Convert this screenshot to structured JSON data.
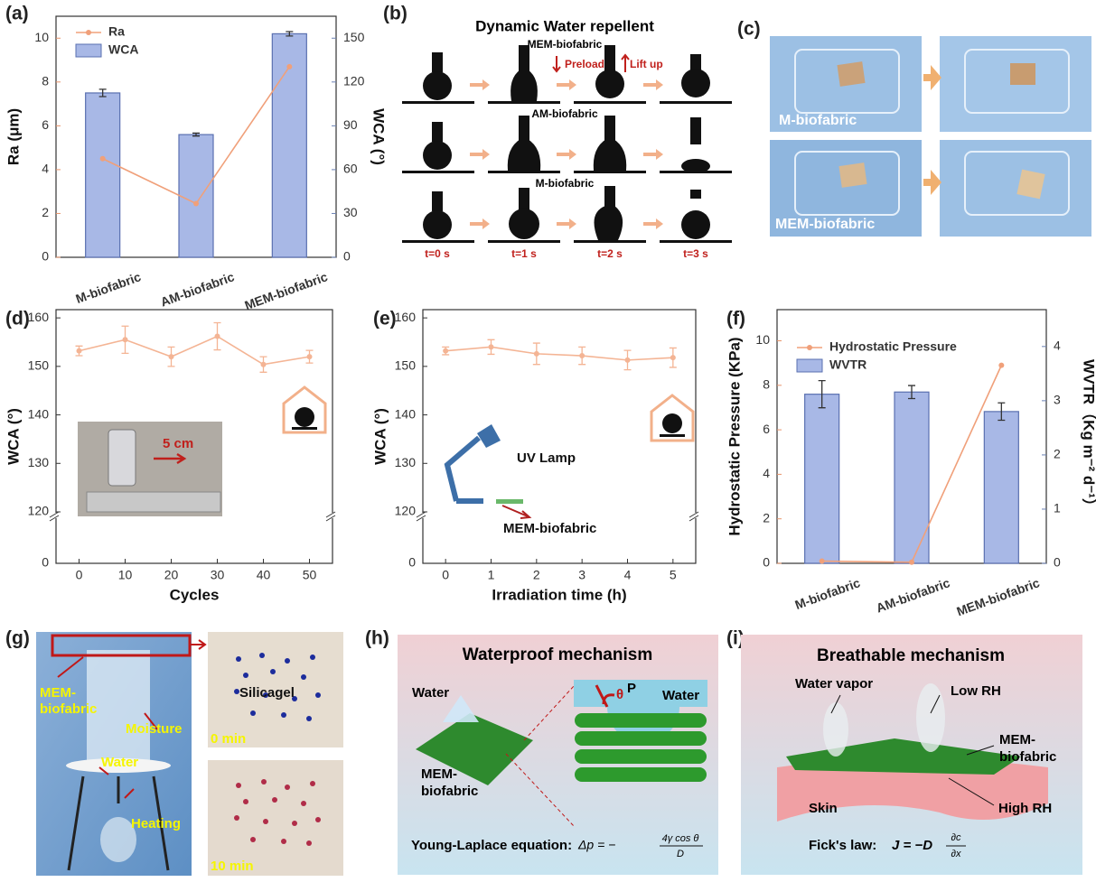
{
  "chart_data": [
    {
      "type": "bar_line",
      "y_label": "Ra (μm)",
      "y2_label": "WCA (°)",
      "categories": [
        "M-biofabric",
        "AM-biofabric",
        "MEM-biofabric"
      ],
      "ylim": [
        0,
        11
      ],
      "yticks": [
        0,
        2,
        4,
        6,
        8,
        10
      ],
      "y2lim": [
        0,
        165
      ],
      "y2ticks": [
        0,
        30,
        60,
        90,
        120,
        150
      ],
      "ycolor": "#e8946a",
      "y2color": "#6a80b4",
      "legend": "upper left",
      "series": [
        {
          "name": "Ra",
          "type": "line",
          "color": "#f0a07a",
          "values": [
            4.5,
            2.45,
            8.7
          ]
        },
        {
          "name": "WCA",
          "type": "bar",
          "axis": "y2",
          "color": "#a8b8e6",
          "values": [
            112.5,
            84,
            153
          ],
          "errors": [
            2.5,
            1,
            1.5
          ]
        }
      ]
    },
    {
      "type": "line",
      "y_label": "WCA (°)",
      "x_label": "Cycles",
      "x": [
        0,
        10,
        20,
        30,
        40,
        50
      ],
      "xlim": [
        -5,
        55
      ],
      "xticks": [
        0,
        10,
        20,
        30,
        40,
        50
      ],
      "ylim": [
        0,
        161.7
      ],
      "ybreak": [
        0,
        120
      ],
      "yticks": [
        0,
        120,
        130,
        140,
        150,
        160
      ],
      "series": [
        {
          "type": "line",
          "color": "#f4b494",
          "values": [
            153.2,
            155.5,
            152,
            156.2,
            150.4,
            152
          ],
          "errors": [
            1,
            2.8,
            2,
            2.8,
            1.6,
            1.3
          ]
        }
      ]
    },
    {
      "type": "line",
      "y_label": "WCA (°)",
      "x_label": "Irradiation time (h)",
      "x": [
        0,
        1,
        2,
        3,
        4,
        5
      ],
      "xlim": [
        -0.5,
        5.5
      ],
      "xticks": [
        0,
        1,
        2,
        3,
        4,
        5
      ],
      "ylim": [
        0,
        161.7
      ],
      "ybreak": [
        0,
        120
      ],
      "yticks": [
        0,
        120,
        130,
        140,
        150,
        160
      ],
      "series": [
        {
          "type": "line",
          "color": "#f4b494",
          "values": [
            153.2,
            154,
            152.6,
            152.2,
            151.3,
            151.8
          ],
          "errors": [
            0.8,
            1.5,
            2.2,
            1.8,
            2,
            2
          ]
        }
      ]
    },
    {
      "type": "bar_line",
      "y_label": "Hydrostatic Pressure (KPa)",
      "y2_label": "WVTR（Kg m⁻² d⁻¹）",
      "categories": [
        "M-biofabric",
        "AM-biofabric",
        "MEM-biofabric"
      ],
      "ylim": [
        0,
        11.4
      ],
      "yticks": [
        0,
        2,
        4,
        6,
        8,
        10
      ],
      "y2lim": [
        0,
        4.68
      ],
      "y2ticks": [
        0,
        1,
        2,
        3,
        4
      ],
      "ycolor": "#e8946a",
      "y2color": "#6a80b4",
      "legend": "upper left",
      "series": [
        {
          "name": "Hydrostatic Pressure",
          "type": "line",
          "color": "#f0a07a",
          "values": [
            0.1,
            0.05,
            8.9
          ]
        },
        {
          "name": "WVTR",
          "type": "bar",
          "axis": "y2",
          "color": "#a8b8e6",
          "values": [
            3.12,
            3.16,
            2.8
          ],
          "errors": [
            0.25,
            0.12,
            0.16
          ]
        }
      ]
    }
  ],
  "panel_labels": [
    "(a)",
    "(b)",
    "(c)",
    "(d)",
    "(e)",
    "(f)",
    "(g)",
    "(h)",
    "(i)"
  ],
  "b": {
    "title": "Dynamic Water repellent",
    "rows": [
      "MEM-biofabric",
      "AM-biofabric",
      "M-biofabric"
    ],
    "preload": "Preload",
    "lift_up": "Lift up",
    "times": [
      "t=0 s",
      "t=1 s",
      "t=2 s",
      "t=3 s"
    ]
  },
  "c": {
    "labels": [
      "M-biofabric",
      "MEM-biofabric"
    ]
  },
  "d_inset": "5 cm",
  "e_inset": {
    "lamp": "UV Lamp",
    "sample": "MEM-biofabric"
  },
  "g": {
    "sample": [
      "MEM-",
      "biofabric"
    ],
    "moisture": "Moisture",
    "water": "Water",
    "heating": "Heating",
    "silicagel": "Silicagel",
    "times": [
      "0 min",
      "10 min"
    ]
  },
  "h": {
    "title": "Waterproof mechanism",
    "water": "Water",
    "pressure": "P",
    "water2": "Water",
    "angle": "θ",
    "sample": [
      "MEM-",
      "biofabric"
    ],
    "equation_label": "Young-Laplace equation:",
    "lhs": "Δp = −",
    "numerator": "4γ cos θ",
    "denominator": "D"
  },
  "i": {
    "title": "Breathable mechanism",
    "vapor": "Water vapor",
    "low": "Low RH",
    "sample": [
      "MEM-",
      "biofabric"
    ],
    "skin": "Skin",
    "high": "High RH",
    "law_label": "Fick's law:",
    "lhs": "J = −D",
    "numerator": "∂c",
    "denominator": "∂x"
  }
}
